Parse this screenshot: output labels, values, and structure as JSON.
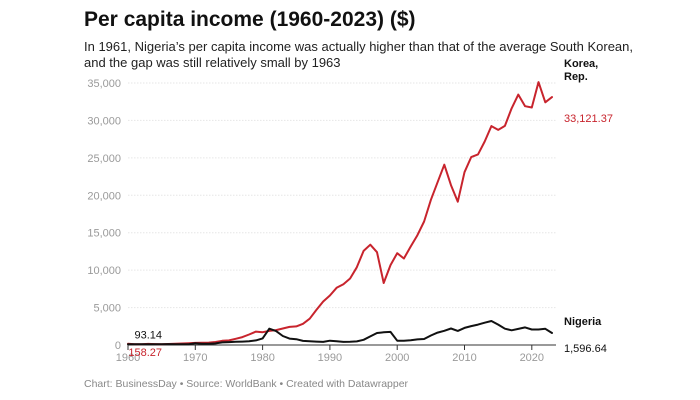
{
  "title": "Per capita income (1960-2023) ($)",
  "subtitle": "In 1961, Nigeria’s per capita income was actually higher than that of the average South Korean, and the gap was still relatively small by 1963",
  "footer": "Chart: BusinessDay • Source: WorldBank • Created with Datawrapper",
  "chart_data": {
    "type": "line",
    "title": "Per capita income (1960-2023) ($)",
    "xlim": [
      1960,
      2023
    ],
    "ylim": [
      0,
      35000
    ],
    "x_ticks": [
      1960,
      1970,
      1980,
      1990,
      2000,
      2010,
      2020
    ],
    "y_ticks": [
      0,
      5000,
      10000,
      15000,
      20000,
      25000,
      30000,
      35000
    ],
    "y_tick_labels": [
      "0",
      "5,000",
      "10,000",
      "15,000",
      "20,000",
      "25,000",
      "30,000",
      "35,000"
    ],
    "x": [
      1960,
      1961,
      1962,
      1963,
      1964,
      1965,
      1966,
      1967,
      1968,
      1969,
      1970,
      1971,
      1972,
      1973,
      1974,
      1975,
      1976,
      1977,
      1978,
      1979,
      1980,
      1981,
      1982,
      1983,
      1984,
      1985,
      1986,
      1987,
      1988,
      1989,
      1990,
      1991,
      1992,
      1993,
      1994,
      1995,
      1996,
      1997,
      1998,
      1999,
      2000,
      2001,
      2002,
      2003,
      2004,
      2005,
      2006,
      2007,
      2008,
      2009,
      2010,
      2011,
      2012,
      2013,
      2014,
      2015,
      2016,
      2017,
      2018,
      2019,
      2020,
      2021,
      2022,
      2023
    ],
    "series": [
      {
        "name": "Korea, Rep.",
        "name_lines": [
          "Korea,",
          "Rep."
        ],
        "color": "#c8242d",
        "start_label": "158.27",
        "end_label": "33,121.37",
        "values": [
          158,
          94,
          106,
          146,
          124,
          109,
          133,
          161,
          198,
          243,
          279,
          301,
          323,
          406,
          563,
          617,
          834,
          1055,
          1405,
          1784,
          1715,
          1883,
          1992,
          2198,
          2413,
          2482,
          2835,
          3510,
          4686,
          5811,
          6610,
          7637,
          8127,
          8885,
          10385,
          12565,
          13403,
          12398,
          8282,
          10672,
          12263,
          11561,
          13165,
          14673,
          16496,
          19403,
          21743,
          24086,
          21346,
          19144,
          23087,
          25096,
          25459,
          27180,
          29249,
          28737,
          29274,
          31601,
          33447,
          31902,
          31721,
          35126,
          32423,
          33121
        ]
      },
      {
        "name": "Nigeria",
        "name_lines": [
          "Nigeria"
        ],
        "color": "#111111",
        "start_label": "93.14",
        "end_label": "1,596.64",
        "values": [
          93,
          98,
          104,
          103,
          107,
          113,
          116,
          97,
          95,
          110,
          224,
          165,
          175,
          208,
          349,
          386,
          426,
          457,
          492,
          610,
          879,
          2180,
          1854,
          1200,
          850,
          780,
          550,
          500,
          460,
          420,
          570,
          500,
          420,
          430,
          480,
          700,
          1150,
          1600,
          1700,
          1750,
          570,
          580,
          640,
          750,
          800,
          1270,
          1650,
          1900,
          2200,
          1890,
          2290,
          2520,
          2720,
          2980,
          3200,
          2730,
          2180,
          1960,
          2150,
          2350,
          2070,
          2070,
          2163,
          1597
        ]
      }
    ]
  }
}
